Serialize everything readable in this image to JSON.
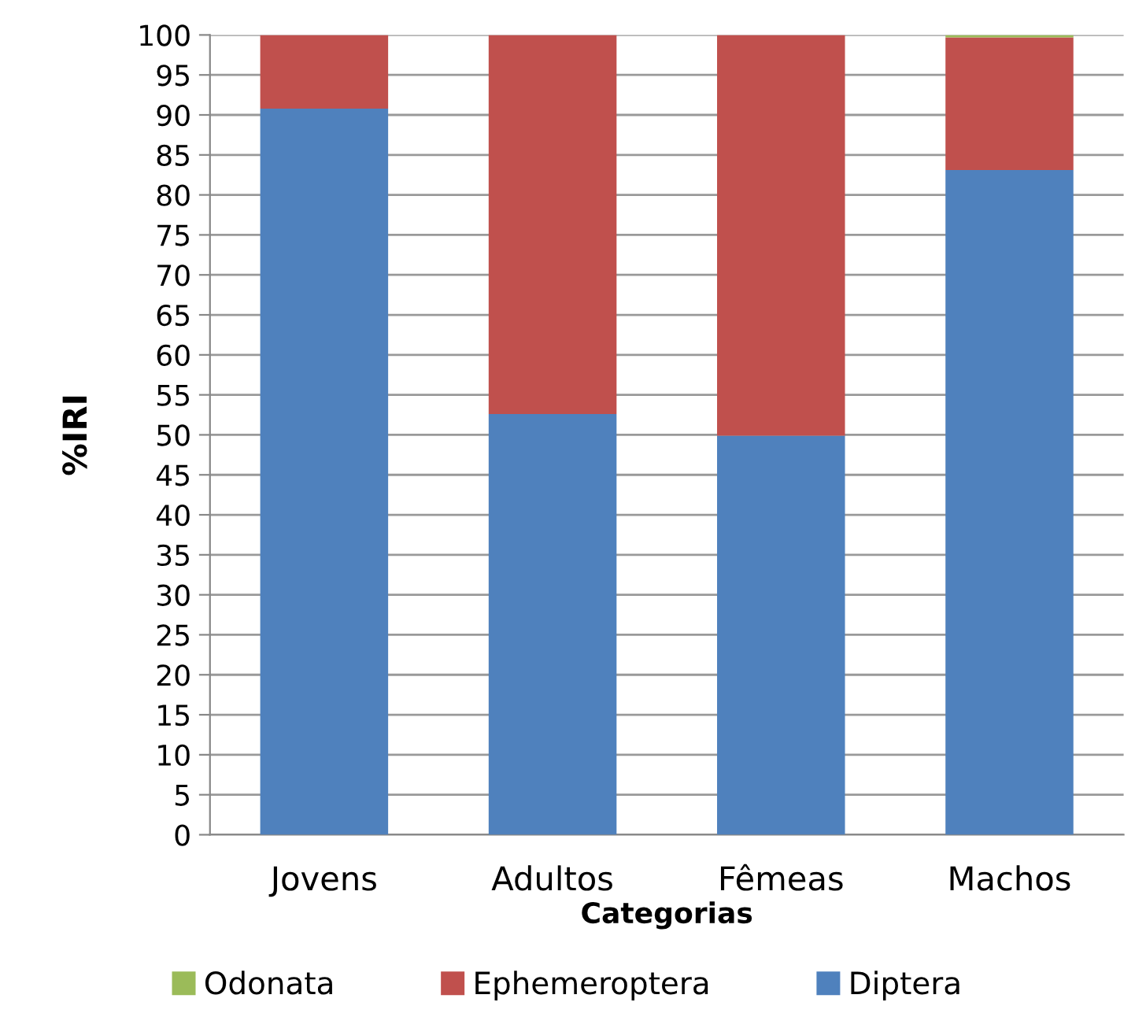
{
  "chart_data": {
    "type": "bar",
    "stacked": true,
    "xlabel": "Categorias",
    "ylabel": "%IRI",
    "categories": [
      "Jovens",
      "Adultos",
      "Fêmeas",
      "Machos"
    ],
    "series": [
      {
        "name": "Diptera",
        "color": "#4f81bd",
        "values": [
          90.8,
          52.6,
          49.9,
          83.1
        ]
      },
      {
        "name": "Ephemeroptera",
        "color": "#c0504d",
        "values": [
          9.2,
          47.4,
          50.1,
          16.6
        ]
      },
      {
        "name": "Odonata",
        "color": "#9bbb59",
        "values": [
          0,
          0,
          0,
          0.3
        ]
      }
    ],
    "ylim": [
      0,
      100
    ],
    "yticks": [
      0,
      5,
      10,
      15,
      20,
      25,
      30,
      35,
      40,
      45,
      50,
      55,
      60,
      65,
      70,
      75,
      80,
      85,
      90,
      95,
      100
    ],
    "grid": "y",
    "legend": "bottom"
  }
}
